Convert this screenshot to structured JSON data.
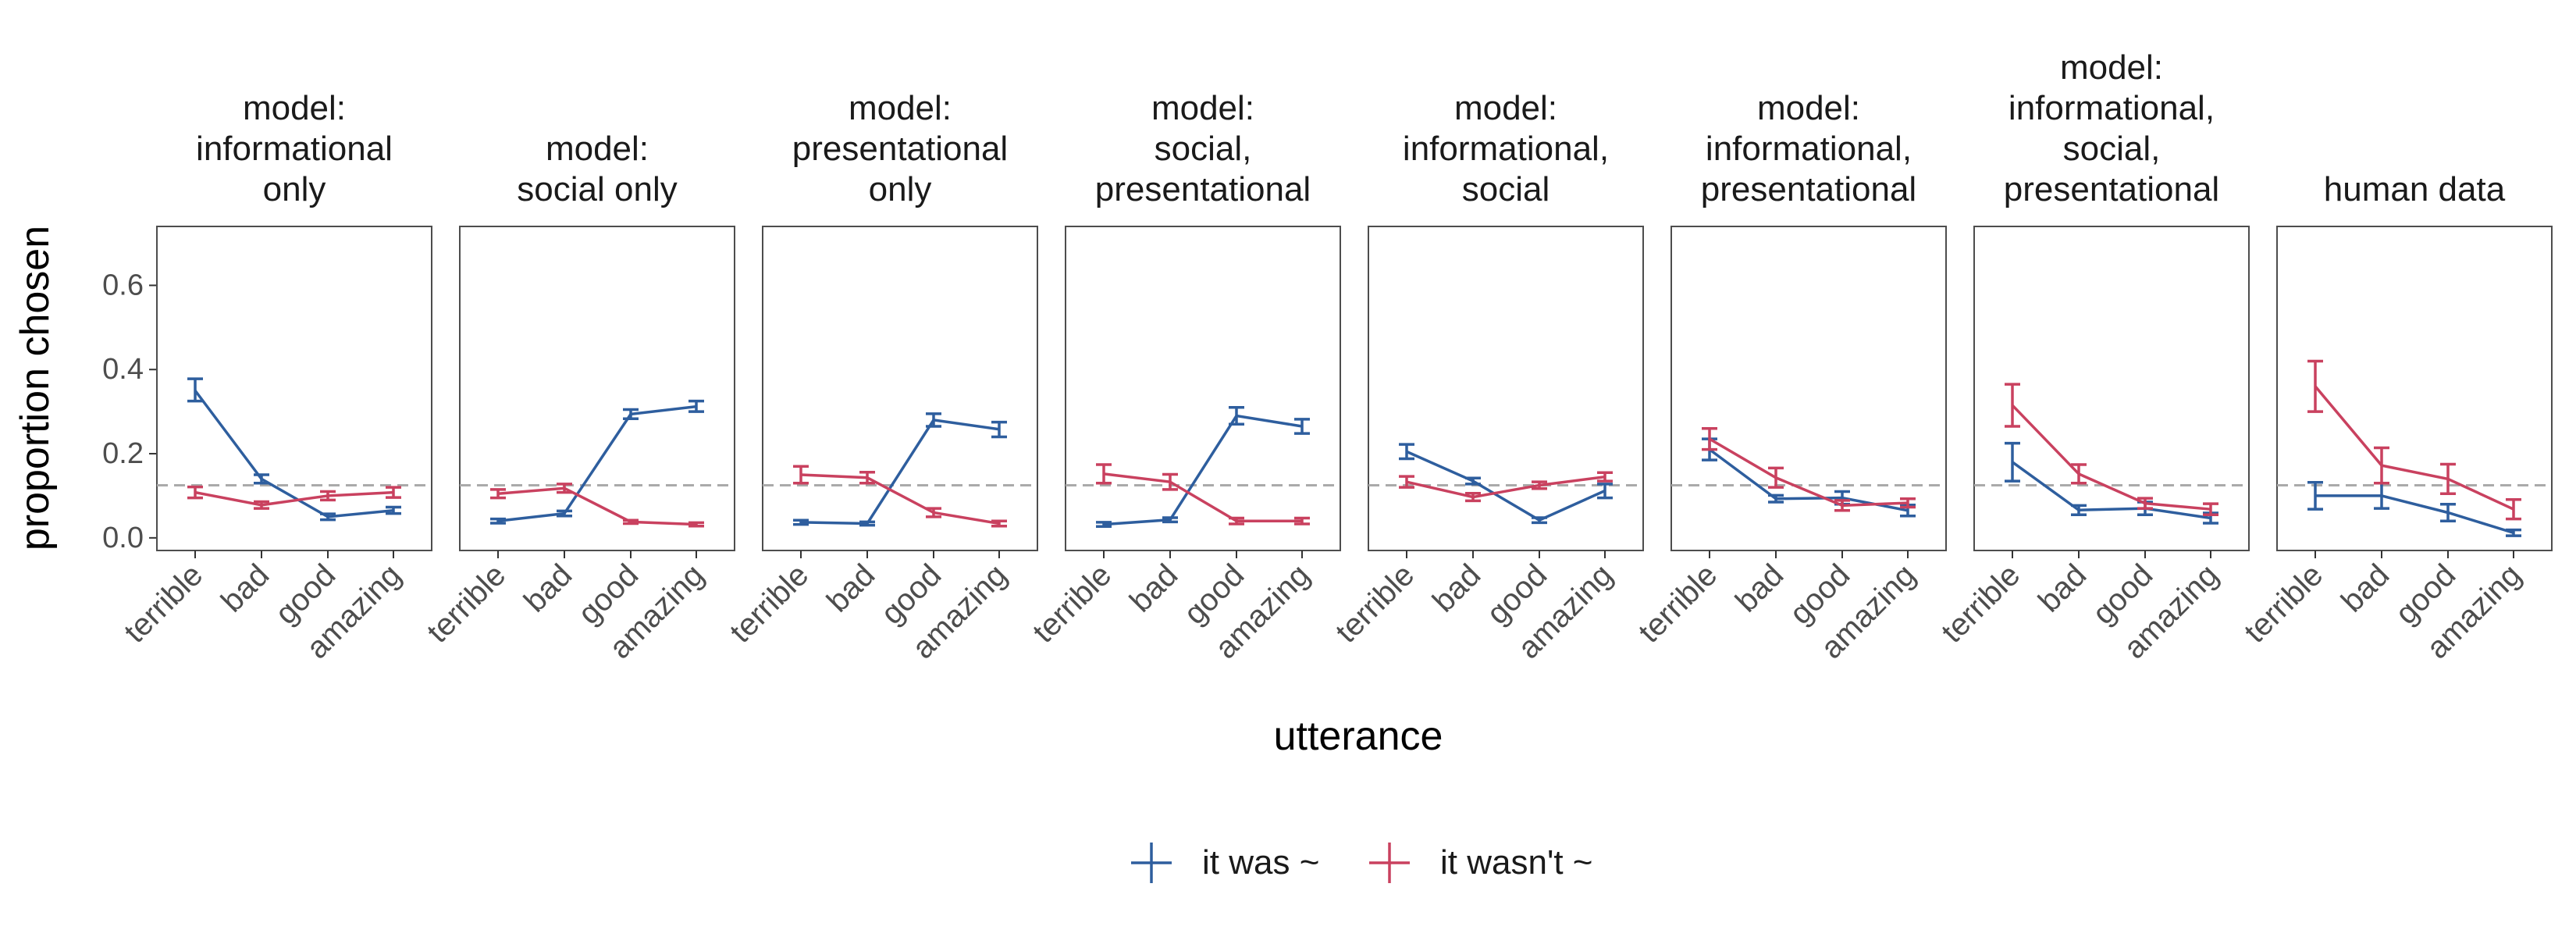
{
  "chart_data": {
    "type": "line",
    "facet_titles": [
      [
        "model:",
        "informational",
        "only"
      ],
      [
        "model:",
        "social only"
      ],
      [
        "model:",
        "presentational",
        "only"
      ],
      [
        "model:",
        "social,",
        "presentational"
      ],
      [
        "model:",
        "informational,",
        "social"
      ],
      [
        "model:",
        "informational,",
        "presentational"
      ],
      [
        "model:",
        "informational,",
        "social,",
        "presentational"
      ],
      [
        "human data"
      ]
    ],
    "categories": [
      "terrible",
      "bad",
      "good",
      "amazing"
    ],
    "xlabel": "utterance",
    "ylabel": "proportion chosen",
    "ylim": [
      -0.03,
      0.74
    ],
    "yticks": [
      0.0,
      0.2,
      0.4,
      0.6
    ],
    "ytick_labels": [
      "0.0",
      "0.2",
      "0.4",
      "0.6"
    ],
    "reference_line": 0.125,
    "legend_position": "bottom",
    "grid": false,
    "colors": {
      "it was ~": "#2e5e9e",
      "it wasn't ~": "#c9415f",
      "reference": "#aaaaaa"
    },
    "series": [
      {
        "name": "it was ~",
        "panels": [
          {
            "values": [
              0.35,
              0.14,
              0.05,
              0.065
            ],
            "lo": [
              0.325,
              0.13,
              0.043,
              0.058
            ],
            "hi": [
              0.378,
              0.15,
              0.057,
              0.073
            ]
          },
          {
            "values": [
              0.04,
              0.058,
              0.294,
              0.312
            ],
            "lo": [
              0.035,
              0.052,
              0.283,
              0.3
            ],
            "hi": [
              0.045,
              0.064,
              0.305,
              0.325
            ]
          },
          {
            "values": [
              0.037,
              0.034,
              0.28,
              0.258
            ],
            "lo": [
              0.032,
              0.03,
              0.265,
              0.24
            ],
            "hi": [
              0.042,
              0.038,
              0.295,
              0.275
            ]
          },
          {
            "values": [
              0.032,
              0.043,
              0.29,
              0.265
            ],
            "lo": [
              0.027,
              0.038,
              0.27,
              0.248
            ],
            "hi": [
              0.037,
              0.048,
              0.31,
              0.282
            ]
          },
          {
            "values": [
              0.205,
              0.135,
              0.042,
              0.112
            ],
            "lo": [
              0.188,
              0.128,
              0.036,
              0.095
            ],
            "hi": [
              0.222,
              0.142,
              0.048,
              0.128
            ]
          },
          {
            "values": [
              0.21,
              0.093,
              0.095,
              0.065
            ],
            "lo": [
              0.185,
              0.085,
              0.08,
              0.052
            ],
            "hi": [
              0.235,
              0.101,
              0.11,
              0.078
            ]
          },
          {
            "values": [
              0.18,
              0.066,
              0.07,
              0.047
            ],
            "lo": [
              0.135,
              0.055,
              0.055,
              0.035
            ],
            "hi": [
              0.225,
              0.077,
              0.085,
              0.059
            ]
          },
          {
            "values": [
              0.1,
              0.1,
              0.06,
              0.012
            ],
            "lo": [
              0.068,
              0.07,
              0.04,
              0.005
            ],
            "hi": [
              0.132,
              0.13,
              0.08,
              0.019
            ]
          }
        ]
      },
      {
        "name": "it wasn't ~",
        "panels": [
          {
            "values": [
              0.108,
              0.078,
              0.1,
              0.108
            ],
            "lo": [
              0.095,
              0.07,
              0.09,
              0.096
            ],
            "hi": [
              0.121,
              0.086,
              0.11,
              0.12
            ]
          },
          {
            "values": [
              0.105,
              0.118,
              0.038,
              0.032
            ],
            "lo": [
              0.095,
              0.108,
              0.034,
              0.028
            ],
            "hi": [
              0.115,
              0.128,
              0.042,
              0.036
            ]
          },
          {
            "values": [
              0.15,
              0.143,
              0.06,
              0.034
            ],
            "lo": [
              0.13,
              0.13,
              0.05,
              0.028
            ],
            "hi": [
              0.17,
              0.156,
              0.07,
              0.04
            ]
          },
          {
            "values": [
              0.152,
              0.133,
              0.04,
              0.04
            ],
            "lo": [
              0.13,
              0.115,
              0.033,
              0.033
            ],
            "hi": [
              0.174,
              0.151,
              0.047,
              0.047
            ]
          },
          {
            "values": [
              0.133,
              0.097,
              0.125,
              0.145
            ],
            "lo": [
              0.12,
              0.088,
              0.117,
              0.135
            ],
            "hi": [
              0.146,
              0.106,
              0.133,
              0.155
            ]
          },
          {
            "values": [
              0.235,
              0.143,
              0.077,
              0.083
            ],
            "lo": [
              0.21,
              0.12,
              0.065,
              0.073
            ],
            "hi": [
              0.26,
              0.166,
              0.089,
              0.093
            ]
          },
          {
            "values": [
              0.315,
              0.152,
              0.082,
              0.068
            ],
            "lo": [
              0.265,
              0.13,
              0.07,
              0.055
            ],
            "hi": [
              0.365,
              0.174,
              0.094,
              0.081
            ]
          },
          {
            "values": [
              0.36,
              0.172,
              0.14,
              0.068
            ],
            "lo": [
              0.3,
              0.13,
              0.105,
              0.045
            ],
            "hi": [
              0.42,
              0.214,
              0.175,
              0.091
            ]
          }
        ]
      }
    ]
  }
}
